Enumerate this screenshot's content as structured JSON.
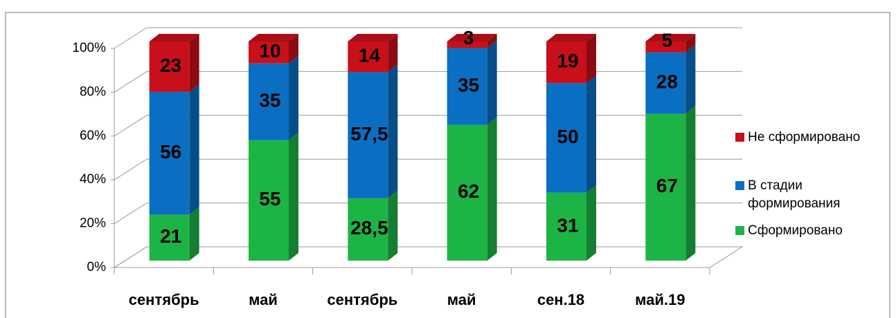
{
  "chart_data": {
    "type": "stacked_bar_3d",
    "categories": [
      "сентябрь",
      "май",
      "сентябрь",
      "май",
      "сен.18",
      "май.19"
    ],
    "series": [
      {
        "name": "Сформировано",
        "color": "#1db446",
        "values": [
          21,
          55,
          28.5,
          62,
          31,
          67
        ],
        "value_labels": [
          "21",
          "55",
          "28,5",
          "62",
          "31",
          "67"
        ]
      },
      {
        "name": "В стадии формирования",
        "color": "#0a6fc2",
        "values": [
          56,
          35,
          57.5,
          35,
          50,
          28
        ],
        "value_labels": [
          "56",
          "35",
          "57,5",
          "35",
          "50",
          "28"
        ]
      },
      {
        "name": "Не сформировано",
        "color": "#c8101a",
        "values": [
          23,
          10,
          14,
          3,
          19,
          5
        ],
        "value_labels": [
          "23",
          "10",
          "14",
          "3",
          "19",
          "5"
        ]
      }
    ],
    "ylim": [
      0,
      100
    ],
    "yticks": [
      {
        "value": 0,
        "label": "0%"
      },
      {
        "value": 20,
        "label": "20%"
      },
      {
        "value": 40,
        "label": "40%"
      },
      {
        "value": 60,
        "label": "60%"
      },
      {
        "value": 80,
        "label": "80%"
      },
      {
        "value": 100,
        "label": "100%"
      }
    ],
    "grid": true,
    "legend": "right"
  }
}
